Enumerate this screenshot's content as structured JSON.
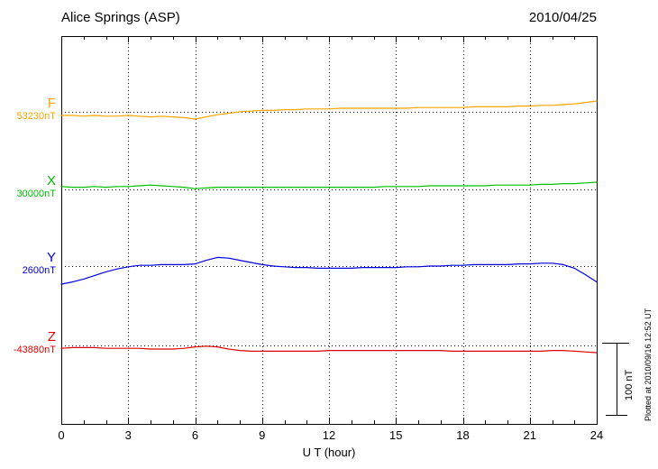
{
  "chart_data": {
    "type": "line",
    "title": "Alice Springs (ASP)",
    "date": "2010/04/25",
    "xlabel": "U T (hour)",
    "x_range": [
      0,
      24
    ],
    "x_ticks": [
      0,
      3,
      6,
      9,
      12,
      15,
      18,
      21,
      24
    ],
    "sample_interval_hours": 0.5,
    "grid": {
      "vertical_dotted_every_hours": 3,
      "baseline_dotted_per_series": true
    },
    "scale_bar": {
      "label": "100 nT",
      "span_nT": 100
    },
    "side_note": "Plotted at 2010/09/16 12:52 UT",
    "series": [
      {
        "name": "F",
        "color": "#ffa500",
        "baseline_label": "53230nT",
        "baseline_nT": 53230,
        "offsets_nT": [
          -5,
          -5,
          -6,
          -5,
          -6,
          -6,
          -5,
          -6,
          -7,
          -6,
          -7,
          -8,
          -10,
          -7,
          -4,
          -2,
          0,
          1,
          2,
          2,
          3,
          3,
          4,
          4,
          4,
          5,
          5,
          5,
          5,
          5,
          5,
          5,
          6,
          6,
          6,
          6,
          6,
          7,
          7,
          7,
          7,
          8,
          8,
          9,
          9,
          10,
          11,
          13,
          15
        ]
      },
      {
        "name": "X",
        "color": "#00c000",
        "baseline_label": "30000nT",
        "baseline_nT": 30000,
        "offsets_nT": [
          4,
          3,
          3,
          4,
          3,
          4,
          4,
          5,
          6,
          5,
          4,
          3,
          1,
          2,
          3,
          3,
          3,
          3,
          3,
          3,
          3,
          3,
          3,
          3,
          3,
          3,
          3,
          3,
          3,
          4,
          4,
          4,
          4,
          5,
          5,
          5,
          5,
          5,
          5,
          6,
          6,
          6,
          6,
          7,
          7,
          8,
          8,
          9,
          10
        ]
      },
      {
        "name": "Y",
        "color": "#0000dd",
        "baseline_label": "2600nT",
        "baseline_nT": 2600,
        "offsets_nT": [
          -25,
          -22,
          -18,
          -13,
          -8,
          -4,
          -1,
          1,
          1,
          2,
          2,
          2,
          3,
          8,
          12,
          11,
          8,
          5,
          2,
          0,
          -1,
          -2,
          -2,
          -3,
          -3,
          -3,
          -3,
          -2,
          -2,
          -2,
          -2,
          -1,
          -1,
          0,
          0,
          1,
          1,
          2,
          2,
          2,
          2,
          3,
          3,
          4,
          4,
          2,
          -3,
          -12,
          -22
        ]
      },
      {
        "name": "Z",
        "color": "#dd0000",
        "baseline_label": "-43880nT",
        "baseline_nT": -43880,
        "offsets_nT": [
          -4,
          -3,
          -3,
          -3,
          -4,
          -4,
          -4,
          -4,
          -5,
          -5,
          -5,
          -4,
          -2,
          -1,
          -2,
          -5,
          -7,
          -8,
          -8,
          -8,
          -8,
          -8,
          -8,
          -8,
          -7,
          -7,
          -7,
          -7,
          -7,
          -7,
          -7,
          -7,
          -7,
          -7,
          -7,
          -8,
          -8,
          -8,
          -8,
          -8,
          -8,
          -8,
          -8,
          -8,
          -7,
          -7,
          -8,
          -9,
          -10
        ]
      }
    ]
  }
}
